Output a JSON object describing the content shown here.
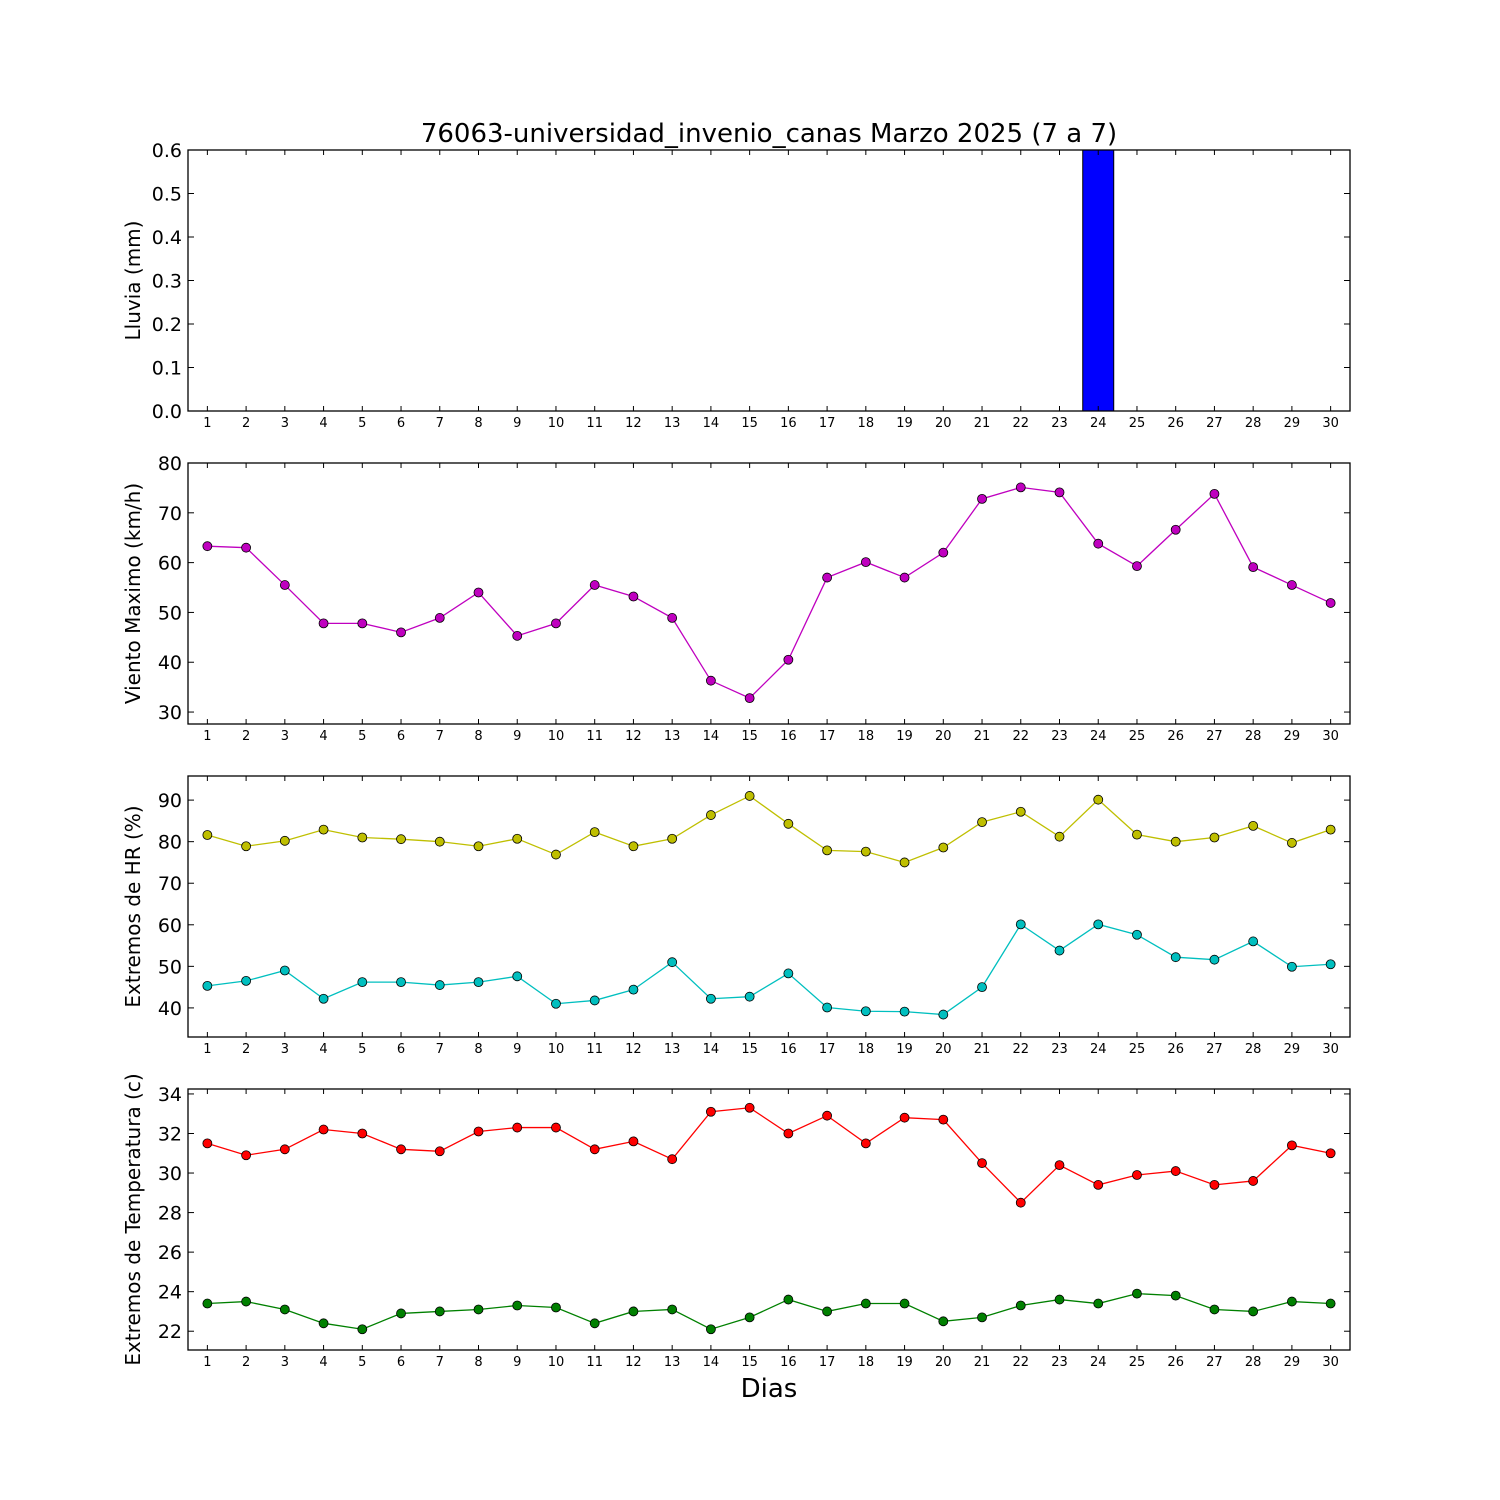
{
  "figure_title": "76063-universidad_invenio_canas Marzo 2025  (7 a 7)",
  "xlabel": "Dias",
  "chart_data": [
    {
      "type": "bar",
      "id": "rain",
      "ylabel": "Lluvia (mm)",
      "categories": [
        1,
        2,
        3,
        4,
        5,
        6,
        7,
        8,
        9,
        10,
        11,
        12,
        13,
        14,
        15,
        16,
        17,
        18,
        19,
        20,
        21,
        22,
        23,
        24,
        25,
        26,
        27,
        28,
        29,
        30
      ],
      "series": [
        {
          "color": "#0000ff",
          "values": [
            0,
            0,
            0,
            0,
            0,
            0,
            0,
            0,
            0,
            0,
            0,
            0,
            0,
            0,
            0,
            0,
            0,
            0,
            0,
            0,
            0,
            0,
            0,
            0.6,
            0,
            0,
            0,
            0,
            0,
            0
          ]
        }
      ],
      "ylim": [
        0,
        0.6
      ],
      "yticks": [
        0.0,
        0.1,
        0.2,
        0.3,
        0.4,
        0.5,
        0.6
      ],
      "ytick_labels": [
        "0.0",
        "0.1",
        "0.2",
        "0.3",
        "0.4",
        "0.5",
        "0.6"
      ],
      "grid": false
    },
    {
      "type": "line",
      "id": "wind",
      "ylabel": "Viento Maximo (km/h)",
      "x": [
        1,
        2,
        3,
        4,
        5,
        6,
        7,
        8,
        9,
        10,
        11,
        12,
        13,
        14,
        15,
        16,
        17,
        18,
        19,
        20,
        21,
        22,
        23,
        24,
        25,
        26,
        27,
        28,
        29,
        30
      ],
      "series": [
        {
          "color": "#bf00bf",
          "values": [
            63.3,
            63,
            55.5,
            47.8,
            47.8,
            46,
            48.9,
            54,
            45.3,
            47.8,
            55.5,
            53.2,
            48.9,
            36.3,
            32.8,
            40.5,
            57,
            60.1,
            57,
            62,
            72.8,
            75.1,
            74.1,
            63.8,
            59.3,
            66.6,
            73.8,
            59.1,
            55.5,
            51.9
          ]
        }
      ],
      "ylim": [
        27.6,
        80
      ],
      "yticks": [
        30,
        40,
        50,
        60,
        70,
        80
      ],
      "ytick_labels": [
        "30",
        "40",
        "50",
        "60",
        "70",
        "80"
      ],
      "grid": false
    },
    {
      "type": "line",
      "id": "humidity",
      "ylabel": "Extremos de HR (%)",
      "x": [
        1,
        2,
        3,
        4,
        5,
        6,
        7,
        8,
        9,
        10,
        11,
        12,
        13,
        14,
        15,
        16,
        17,
        18,
        19,
        20,
        21,
        22,
        23,
        24,
        25,
        26,
        27,
        28,
        29,
        30
      ],
      "series": [
        {
          "color": "#bfbf00",
          "values": [
            81.6,
            78.9,
            80.2,
            82.9,
            81,
            80.6,
            80,
            78.9,
            80.7,
            76.9,
            82.3,
            78.9,
            80.7,
            86.4,
            91,
            84.3,
            77.9,
            77.6,
            75,
            78.6,
            84.7,
            87.2,
            81.2,
            90.1,
            81.7,
            80,
            81,
            83.8,
            79.7,
            82.9
          ]
        },
        {
          "color": "#00bfbf",
          "values": [
            45.3,
            46.5,
            49,
            42.2,
            46.2,
            46.2,
            45.5,
            46.2,
            47.6,
            41,
            41.8,
            44.4,
            51,
            42.2,
            42.7,
            48.3,
            40.1,
            39.2,
            39.1,
            38.4,
            45,
            60.1,
            53.8,
            60.1,
            57.6,
            52.2,
            51.6,
            56,
            49.9,
            50.5
          ]
        }
      ],
      "ylim": [
        33,
        95.8
      ],
      "yticks": [
        40,
        50,
        60,
        70,
        80,
        90
      ],
      "ytick_labels": [
        "40",
        "50",
        "60",
        "70",
        "80",
        "90"
      ],
      "grid": false
    },
    {
      "type": "line",
      "id": "temperature",
      "ylabel": "Extremos de Temperatura (c)",
      "x": [
        1,
        2,
        3,
        4,
        5,
        6,
        7,
        8,
        9,
        10,
        11,
        12,
        13,
        14,
        15,
        16,
        17,
        18,
        19,
        20,
        21,
        22,
        23,
        24,
        25,
        26,
        27,
        28,
        29,
        30
      ],
      "series": [
        {
          "color": "#ff0000",
          "values": [
            31.5,
            30.9,
            31.2,
            32.2,
            32,
            31.2,
            31.1,
            32.1,
            32.3,
            32.3,
            31.2,
            31.6,
            30.7,
            33.1,
            33.3,
            32,
            32.9,
            31.5,
            32.8,
            32.7,
            30.5,
            28.5,
            30.4,
            29.4,
            29.9,
            30.1,
            29.4,
            29.6,
            31.4,
            31
          ]
        },
        {
          "color": "#008000",
          "values": [
            23.4,
            23.5,
            23.1,
            22.4,
            22.1,
            22.9,
            23,
            23.1,
            23.3,
            23.2,
            22.4,
            23,
            23.1,
            22.1,
            22.7,
            23.6,
            23,
            23.4,
            23.4,
            22.5,
            22.7,
            23.3,
            23.6,
            23.4,
            23.9,
            23.8,
            23.1,
            23,
            23.5,
            23.4
          ]
        }
      ],
      "ylim": [
        21.05,
        34.25
      ],
      "yticks": [
        22,
        24,
        26,
        28,
        30,
        32,
        34
      ],
      "ytick_labels": [
        "22",
        "24",
        "26",
        "28",
        "30",
        "32",
        "34"
      ],
      "grid": false
    }
  ]
}
